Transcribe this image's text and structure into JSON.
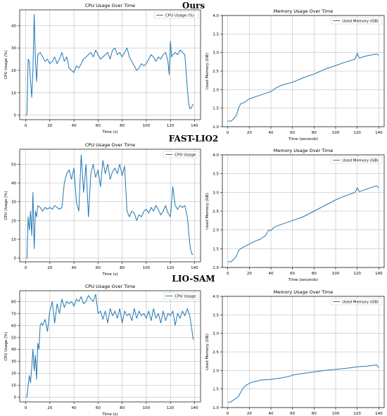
{
  "section_titles": [
    "Ours",
    "FAST-LIO2",
    "LIO-SAM"
  ],
  "colors": {
    "line": "#1f77b4",
    "axis": "#000000",
    "grid": "#b0b0b0",
    "legend_border": "#cccccc"
  },
  "chart_data": [
    {
      "type": "line",
      "title": "CPU Usage Over Time",
      "xlabel": "Time (s)",
      "ylabel": "CPU Usage (%)",
      "xlim": [
        -5,
        145
      ],
      "ylim": [
        -2,
        47
      ],
      "xticks": [
        0,
        20,
        40,
        60,
        80,
        100,
        120,
        140
      ],
      "yticks": [
        0,
        10,
        20,
        30,
        40
      ],
      "grid": true,
      "legend": "top-right",
      "series": [
        {
          "name": "CPU Usage (%)",
          "x": [
            0,
            1,
            2,
            3,
            4,
            5,
            6,
            7,
            8,
            9,
            10,
            12,
            14,
            16,
            18,
            20,
            22,
            24,
            26,
            28,
            30,
            32,
            34,
            36,
            38,
            40,
            42,
            44,
            46,
            48,
            50,
            52,
            54,
            56,
            58,
            60,
            62,
            64,
            66,
            68,
            70,
            72,
            74,
            76,
            78,
            80,
            82,
            84,
            86,
            88,
            90,
            92,
            94,
            96,
            98,
            100,
            102,
            104,
            106,
            108,
            110,
            112,
            114,
            116,
            118,
            119,
            120,
            121,
            122,
            124,
            126,
            128,
            130,
            132,
            133,
            134,
            135,
            136,
            137,
            138,
            139
          ],
          "y": [
            0,
            0.5,
            25,
            24,
            15,
            8,
            20,
            45,
            25,
            15,
            27,
            28,
            26,
            24,
            25,
            23,
            24,
            26,
            23,
            25,
            28,
            24,
            26,
            21,
            20,
            19,
            22,
            21,
            23,
            25,
            26,
            27,
            28,
            26,
            29,
            27,
            25,
            26,
            27,
            28,
            25,
            29,
            30,
            27,
            28,
            26,
            28,
            30,
            26,
            24,
            22,
            20,
            21,
            23,
            22,
            23,
            25,
            27,
            26,
            24,
            26,
            25,
            27,
            28,
            24,
            18,
            33,
            26,
            27,
            28,
            27,
            29,
            28,
            27,
            20,
            12,
            6,
            3,
            3,
            4,
            5
          ]
        }
      ]
    },
    {
      "type": "line",
      "title": "Memory Usage Over Time",
      "xlabel": "Time (seconds)",
      "ylabel": "Used Memory (GB)",
      "xlim": [
        -5,
        145
      ],
      "ylim": [
        1.0,
        4.0
      ],
      "xticks": [
        0,
        20,
        40,
        60,
        80,
        100,
        120,
        140
      ],
      "yticks": [
        1.0,
        1.5,
        2.0,
        2.5,
        3.0,
        3.5,
        4.0
      ],
      "grid": true,
      "legend": "top-right",
      "series": [
        {
          "name": "Used Memory (GB)",
          "x": [
            0,
            3,
            5,
            8,
            10,
            12,
            15,
            20,
            30,
            40,
            45,
            50,
            60,
            70,
            80,
            90,
            100,
            110,
            118,
            120,
            122,
            124,
            130,
            138,
            140
          ],
          "y": [
            1.15,
            1.15,
            1.2,
            1.3,
            1.5,
            1.62,
            1.65,
            1.75,
            1.85,
            1.95,
            2.05,
            2.12,
            2.2,
            2.32,
            2.42,
            2.55,
            2.65,
            2.75,
            2.82,
            2.98,
            2.85,
            2.87,
            2.92,
            2.96,
            2.92
          ]
        }
      ]
    },
    {
      "type": "line",
      "title": "CPU Usage Over Time",
      "xlabel": "Time (s)",
      "ylabel": "CPU Usage (%)",
      "xlim": [
        -5,
        145
      ],
      "ylim": [
        -2,
        58
      ],
      "xticks": [
        0,
        20,
        40,
        60,
        80,
        100,
        120,
        140
      ],
      "yticks": [
        0,
        10,
        20,
        30,
        40,
        50
      ],
      "grid": true,
      "legend": "top-right",
      "series": [
        {
          "name": "CPU Usage",
          "x": [
            0,
            1,
            2,
            3,
            4,
            5,
            6,
            7,
            8,
            9,
            10,
            12,
            14,
            16,
            18,
            20,
            22,
            24,
            26,
            28,
            30,
            32,
            34,
            36,
            38,
            40,
            42,
            44,
            46,
            48,
            50,
            52,
            54,
            56,
            58,
            60,
            62,
            64,
            66,
            68,
            70,
            72,
            74,
            76,
            78,
            80,
            82,
            84,
            86,
            88,
            90,
            92,
            94,
            96,
            98,
            100,
            102,
            104,
            106,
            108,
            110,
            112,
            114,
            116,
            118,
            120,
            122,
            124,
            126,
            128,
            130,
            132,
            134,
            135,
            136,
            137,
            138,
            139
          ],
          "y": [
            0,
            0,
            22,
            15,
            25,
            12,
            35,
            5,
            25,
            22,
            28,
            27,
            25,
            27,
            26,
            27,
            26,
            28,
            27,
            26,
            27,
            40,
            45,
            47,
            42,
            48,
            30,
            25,
            55,
            35,
            50,
            22,
            45,
            50,
            43,
            47,
            38,
            52,
            45,
            50,
            42,
            46,
            48,
            45,
            50,
            44,
            49,
            25,
            22,
            25,
            24,
            20,
            23,
            22,
            25,
            26,
            24,
            27,
            25,
            28,
            26,
            23,
            25,
            28,
            24,
            22,
            38,
            28,
            26,
            28,
            27,
            28,
            22,
            15,
            8,
            4,
            2,
            2
          ]
        }
      ]
    },
    {
      "type": "line",
      "title": "Memory Usage Over Time",
      "xlabel": "Time (seconds)",
      "ylabel": "Used Memory (GB)",
      "xlim": [
        -5,
        145
      ],
      "ylim": [
        1.0,
        4.0
      ],
      "xticks": [
        0,
        20,
        40,
        60,
        80,
        100,
        120,
        140
      ],
      "yticks": [
        1.0,
        1.5,
        2.0,
        2.5,
        3.0,
        3.5,
        4.0
      ],
      "grid": true,
      "legend": "top-right",
      "series": [
        {
          "name": "Used Memory (GB)",
          "x": [
            0,
            3,
            5,
            8,
            10,
            12,
            15,
            20,
            25,
            30,
            35,
            38,
            40,
            42,
            45,
            50,
            60,
            70,
            80,
            90,
            100,
            110,
            118,
            120,
            122,
            125,
            130,
            135,
            138,
            140
          ],
          "y": [
            1.15,
            1.15,
            1.2,
            1.3,
            1.45,
            1.5,
            1.55,
            1.62,
            1.7,
            1.75,
            1.85,
            2.0,
            1.98,
            2.05,
            2.1,
            2.15,
            2.25,
            2.35,
            2.5,
            2.65,
            2.8,
            2.92,
            3.0,
            3.12,
            3.02,
            3.05,
            3.1,
            3.15,
            3.18,
            3.12
          ]
        }
      ]
    },
    {
      "type": "line",
      "title": "CPU Usage Over Time",
      "xlabel": "Time (s)",
      "ylabel": "CPU Usage (%)",
      "xlim": [
        -5,
        145
      ],
      "ylim": [
        -4,
        89
      ],
      "xticks": [
        0,
        20,
        40,
        60,
        80,
        100,
        120,
        140
      ],
      "yticks": [
        0,
        10,
        20,
        30,
        40,
        50,
        60,
        70,
        80
      ],
      "grid": true,
      "legend": "top-right",
      "series": [
        {
          "name": "CPU Usage",
          "x": [
            0,
            1,
            2,
            3,
            4,
            5,
            6,
            7,
            8,
            9,
            10,
            11,
            12,
            13,
            14,
            16,
            18,
            20,
            22,
            24,
            26,
            28,
            30,
            32,
            34,
            36,
            38,
            40,
            42,
            44,
            46,
            48,
            50,
            52,
            54,
            56,
            58,
            60,
            62,
            64,
            66,
            68,
            70,
            72,
            74,
            76,
            78,
            80,
            82,
            84,
            86,
            88,
            90,
            92,
            94,
            96,
            98,
            100,
            102,
            104,
            106,
            108,
            110,
            112,
            114,
            116,
            118,
            120,
            122,
            124,
            126,
            128,
            130,
            132,
            134,
            136,
            137,
            138,
            139
          ],
          "y": [
            0,
            0,
            10,
            18,
            12,
            25,
            40,
            22,
            35,
            15,
            45,
            40,
            60,
            62,
            60,
            65,
            55,
            72,
            80,
            62,
            78,
            70,
            82,
            75,
            80,
            78,
            80,
            76,
            82,
            80,
            84,
            78,
            80,
            85,
            82,
            80,
            86,
            70,
            72,
            65,
            72,
            62,
            74,
            68,
            72,
            66,
            74,
            62,
            72,
            68,
            70,
            64,
            74,
            66,
            72,
            68,
            70,
            66,
            72,
            64,
            74,
            66,
            70,
            62,
            72,
            64,
            70,
            68,
            72,
            60,
            70,
            66,
            72,
            68,
            74,
            68,
            62,
            55,
            48
          ]
        }
      ]
    },
    {
      "type": "line",
      "title": "Memory Usage Over Time",
      "xlabel": "Time (seconds)",
      "ylabel": "Used Memory (GB)",
      "xlim": [
        -5,
        145
      ],
      "ylim": [
        1.0,
        4.0
      ],
      "xticks": [
        0,
        20,
        40,
        60,
        80,
        100,
        120,
        140
      ],
      "yticks": [
        1.0,
        1.5,
        2.0,
        2.5,
        3.0,
        3.5,
        4.0
      ],
      "grid": true,
      "legend": "top-right",
      "series": [
        {
          "name": "Used Memory (GB)",
          "x": [
            0,
            3,
            5,
            8,
            10,
            12,
            15,
            18,
            20,
            22,
            25,
            28,
            30,
            35,
            40,
            45,
            50,
            55,
            58,
            60,
            70,
            80,
            90,
            100,
            110,
            120,
            130,
            135,
            138,
            140
          ],
          "y": [
            1.15,
            1.15,
            1.2,
            1.25,
            1.3,
            1.42,
            1.55,
            1.62,
            1.65,
            1.68,
            1.7,
            1.72,
            1.74,
            1.75,
            1.76,
            1.78,
            1.8,
            1.83,
            1.85,
            1.88,
            1.92,
            1.96,
            2.0,
            2.03,
            2.06,
            2.1,
            2.12,
            2.14,
            2.15,
            2.08
          ]
        }
      ]
    }
  ]
}
